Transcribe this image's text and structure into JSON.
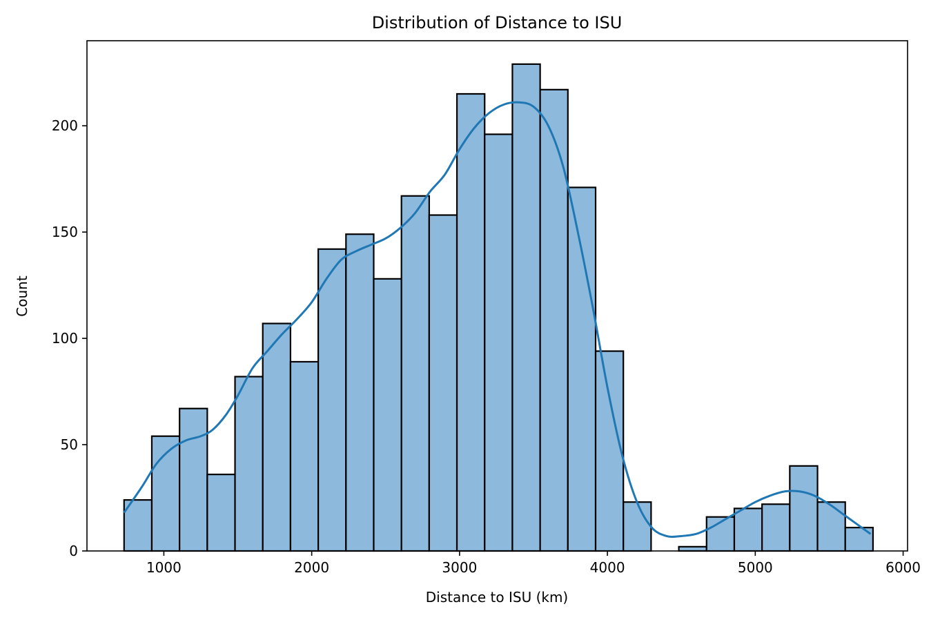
{
  "chart_data": {
    "type": "bar",
    "title": "Distribution of Distance to ISU",
    "xlabel": "Distance to ISU (km)",
    "ylabel": "Count",
    "xlim": [
      480,
      6030
    ],
    "ylim": [
      0,
      240
    ],
    "xticks": [
      1000,
      2000,
      3000,
      4000,
      5000,
      6000
    ],
    "yticks": [
      0,
      50,
      100,
      150,
      200
    ],
    "bin_width": 187.6,
    "bins_start": [
      731,
      918.6,
      1106.2,
      1293.8,
      1481.4,
      1669,
      1856.6,
      2044.2,
      2231.8,
      2419.4,
      2607,
      2794.6,
      2982.2,
      3169.8,
      3357.4,
      3545,
      3732.6,
      3920.2,
      4107.8,
      4295.4,
      4483,
      4670.6,
      4858.2,
      5045.8,
      5233.4,
      5421,
      5608.6
    ],
    "values": [
      24,
      54,
      67,
      36,
      82,
      107,
      89,
      142,
      149,
      128,
      167,
      158,
      215,
      196,
      229,
      217,
      171,
      94,
      23,
      0,
      2,
      16,
      20,
      22,
      40,
      23,
      11
    ],
    "bar_color": "#8db9dc",
    "bar_edge_color": "#000000",
    "kde": {
      "color": "#1f77b4",
      "x": [
        731,
        850,
        950,
        1050,
        1150,
        1250,
        1330,
        1420,
        1500,
        1600,
        1700,
        1800,
        1900,
        2000,
        2100,
        2200,
        2300,
        2400,
        2500,
        2600,
        2700,
        2800,
        2900,
        3000,
        3100,
        3200,
        3300,
        3400,
        3500,
        3600,
        3700,
        3800,
        3900,
        4000,
        4100,
        4200,
        4300,
        4400,
        4500,
        4600,
        4700,
        4800,
        4900,
        5000,
        5100,
        5200,
        5300,
        5400,
        5500,
        5600,
        5700,
        5780
      ],
      "y": [
        18,
        30,
        41,
        48,
        52,
        54,
        57,
        64,
        73,
        86,
        94,
        102,
        109,
        117,
        128,
        137,
        141,
        144,
        147,
        152,
        159,
        169,
        177,
        189,
        199,
        206,
        210,
        211,
        209,
        200,
        181,
        150,
        115,
        77,
        45,
        23,
        11,
        7,
        7,
        8,
        11,
        15,
        19,
        23,
        26,
        28,
        28,
        26,
        22,
        17,
        12,
        8
      ]
    }
  }
}
